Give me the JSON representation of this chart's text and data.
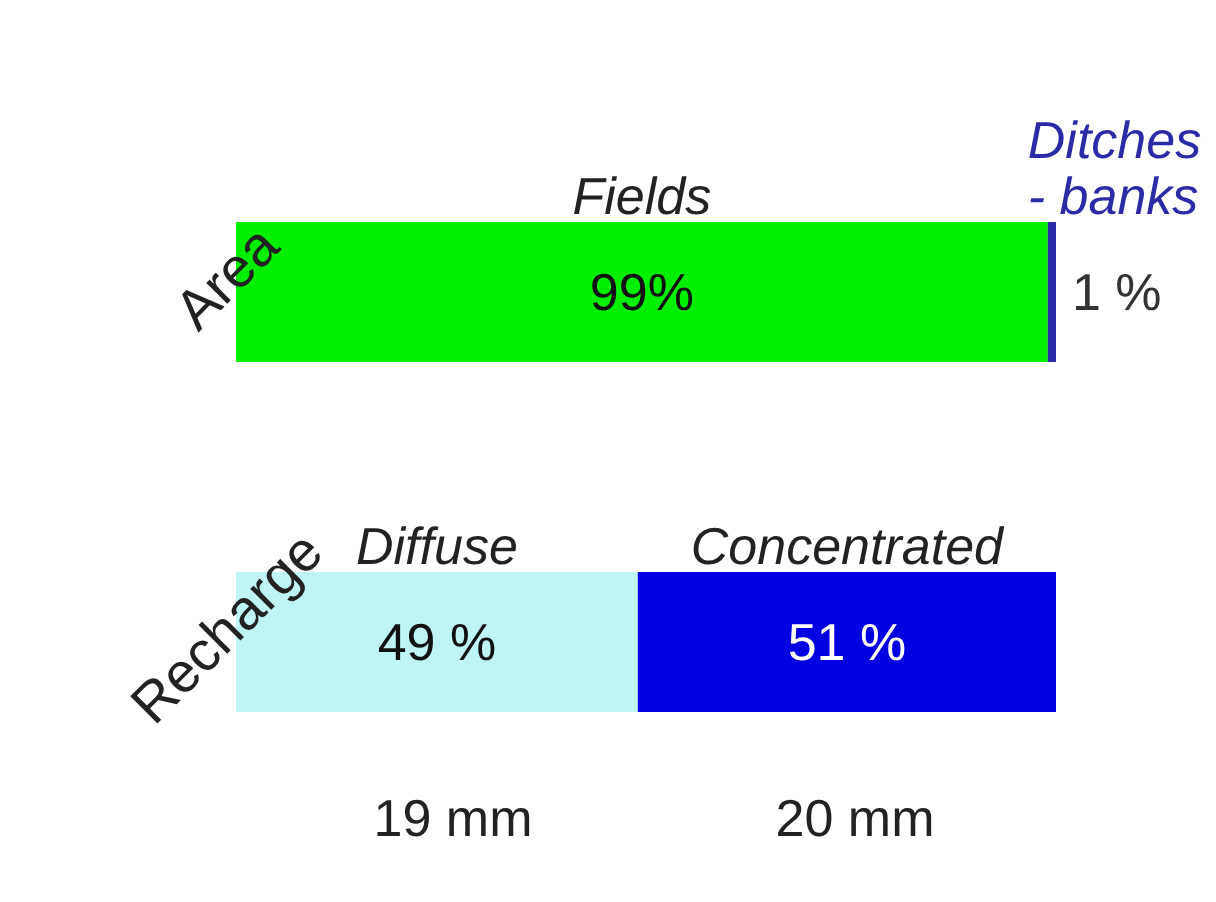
{
  "chart_data": {
    "type": "bar",
    "orientation": "horizontal",
    "stacked": true,
    "categories": [
      "Area",
      "Recharge"
    ],
    "series": [
      {
        "name": "Fields",
        "color": "#00ee00",
        "values": [
          99,
          null
        ],
        "value_labels": [
          "99%",
          null
        ]
      },
      {
        "name": "Ditches\n- banks",
        "color": "#2b2ba8",
        "values": [
          1,
          null
        ],
        "value_labels": [
          "1 %",
          null
        ]
      },
      {
        "name": "Diffuse",
        "color": "#bff5f5",
        "values": [
          null,
          49
        ],
        "value_labels": [
          null,
          "49 %"
        ]
      },
      {
        "name": "Concentrated",
        "color": "#0000e0",
        "values": [
          null,
          51
        ],
        "value_labels": [
          null,
          "51 %"
        ]
      }
    ],
    "xlim": [
      0,
      100
    ],
    "tick_labels": "y",
    "legend": false,
    "grid": false,
    "annotations": [
      "19 mm",
      "20 mm"
    ]
  }
}
